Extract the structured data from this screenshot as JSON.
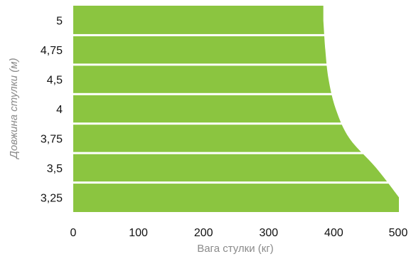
{
  "chart_data": {
    "type": "bar",
    "orientation": "horizontal",
    "categories": [
      "5",
      "4,75",
      "4,5",
      "4",
      "3,75",
      "3,5",
      "3,25"
    ],
    "values": [
      384,
      387,
      392,
      403,
      424,
      465,
      500
    ],
    "xlabel": "Вага стулки (кг)",
    "ylabel": "Довжина стулки (м)",
    "xlim": [
      0,
      500
    ],
    "xticks": [
      "0",
      "100",
      "200",
      "300",
      "400",
      "500"
    ],
    "grid": false,
    "legend": "none",
    "colors": {
      "bar": "#8bc540",
      "separator": "#ffffff"
    }
  }
}
